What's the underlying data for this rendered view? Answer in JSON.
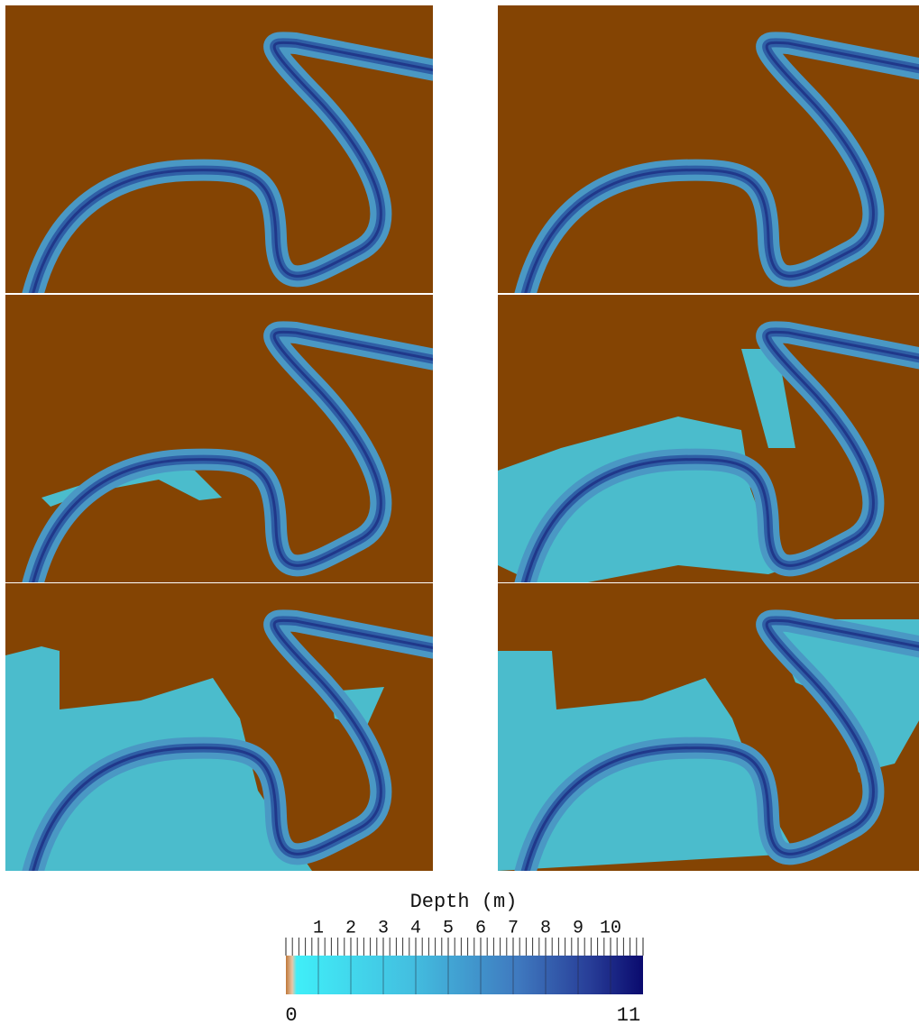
{
  "chart_data": {
    "type": "colorbar",
    "title": "Depth (m)",
    "xlim": [
      0,
      11
    ],
    "xticks": [
      1,
      2,
      3,
      4,
      5,
      6,
      7,
      8,
      9,
      10
    ],
    "minor_ticks": [
      0.2,
      0.4,
      0.6,
      0.8,
      1.2,
      1.4,
      1.6,
      1.8,
      2.2,
      2.4,
      2.6,
      2.8,
      3.2,
      3.4,
      3.6,
      3.8,
      4.2,
      4.4,
      4.6,
      4.8,
      5.2,
      5.4,
      5.6,
      5.8,
      6.2,
      6.4,
      6.6,
      6.8,
      7.2,
      7.4,
      7.6,
      7.8,
      8.2,
      8.4,
      8.6,
      8.8,
      9.2,
      9.4,
      9.6,
      9.8,
      10.2,
      10.4,
      10.6,
      10.8
    ]
  }
}
